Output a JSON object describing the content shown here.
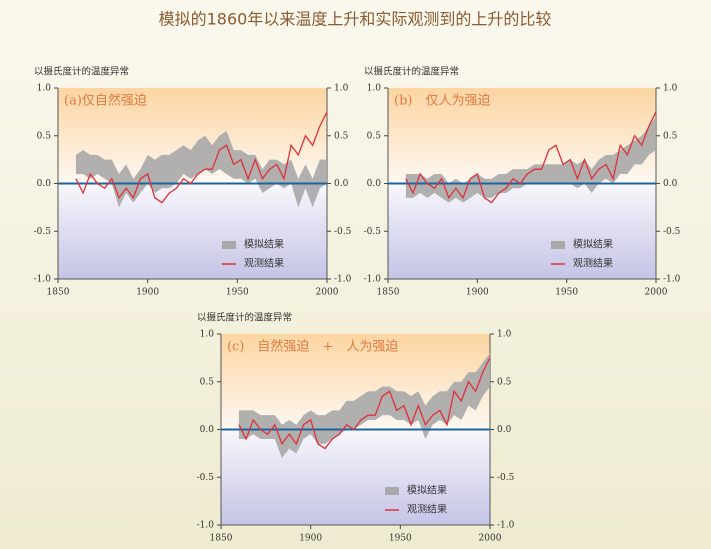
{
  "title": "模拟的1860年以来温度上升和实际观测到的上升的比较",
  "chart_data": [
    {
      "type": "line",
      "title": "(a)仅自然强迫",
      "y_label": "以摄氏度计的温度异常",
      "x": [
        1860,
        1864,
        1868,
        1872,
        1876,
        1880,
        1884,
        1888,
        1892,
        1896,
        1900,
        1904,
        1908,
        1912,
        1916,
        1920,
        1924,
        1928,
        1932,
        1936,
        1940,
        1944,
        1948,
        1952,
        1956,
        1960,
        1964,
        1968,
        1972,
        1976,
        1980,
        1984,
        1988,
        1992,
        1996,
        2000
      ],
      "xlim": [
        1850,
        2000
      ],
      "xticks": [
        1850,
        1900,
        1950,
        2000
      ],
      "ylim": [
        -1,
        1
      ],
      "yticks": [
        {
          "value": 1,
          "label": "1.0"
        },
        {
          "value": 0.5,
          "label": "0.5"
        },
        {
          "value": 0,
          "label": "0.0"
        },
        {
          "value": -0.5,
          "label": "-0.5"
        },
        {
          "value": -1,
          "label": "-1.0"
        }
      ],
      "series": [
        {
          "name": "模拟结果",
          "color": "#a8a8a8",
          "lower": [
            0.1,
            0.1,
            0.05,
            0.1,
            0.05,
            0.0,
            -0.25,
            -0.1,
            -0.2,
            -0.1,
            0.0,
            -0.1,
            -0.05,
            -0.05,
            0.0,
            0.1,
            0.05,
            0.1,
            0.15,
            0.1,
            0.15,
            0.1,
            0.05,
            0.05,
            0.0,
            0.05,
            -0.1,
            -0.05,
            0.0,
            -0.05,
            0.0,
            -0.25,
            -0.05,
            -0.25,
            -0.05,
            0.0
          ],
          "upper": [
            0.3,
            0.35,
            0.3,
            0.3,
            0.25,
            0.25,
            0.1,
            0.2,
            0.05,
            0.15,
            0.3,
            0.25,
            0.3,
            0.3,
            0.35,
            0.4,
            0.35,
            0.45,
            0.5,
            0.4,
            0.5,
            0.55,
            0.35,
            0.35,
            0.3,
            0.3,
            0.15,
            0.25,
            0.25,
            0.2,
            0.25,
            0.05,
            0.2,
            0.05,
            0.25,
            0.25
          ]
        },
        {
          "name": "观测结果",
          "color": "#e0303a",
          "values": [
            0.05,
            -0.1,
            0.1,
            0.0,
            -0.05,
            0.05,
            -0.15,
            -0.05,
            -0.15,
            0.05,
            0.1,
            -0.15,
            -0.2,
            -0.1,
            -0.05,
            0.05,
            0.0,
            0.1,
            0.15,
            0.15,
            0.35,
            0.4,
            0.2,
            0.25,
            0.05,
            0.25,
            0.05,
            0.15,
            0.2,
            0.05,
            0.4,
            0.3,
            0.5,
            0.4,
            0.6,
            0.75
          ]
        }
      ]
    },
    {
      "type": "line",
      "title": "(b)　仅人为强迫",
      "y_label": "以摄氏度计的温度异常",
      "x": [
        1860,
        1864,
        1868,
        1872,
        1876,
        1880,
        1884,
        1888,
        1892,
        1896,
        1900,
        1904,
        1908,
        1912,
        1916,
        1920,
        1924,
        1928,
        1932,
        1936,
        1940,
        1944,
        1948,
        1952,
        1956,
        1960,
        1964,
        1968,
        1972,
        1976,
        1980,
        1984,
        1988,
        1992,
        1996,
        2000
      ],
      "xlim": [
        1850,
        2000
      ],
      "xticks": [
        1850,
        1900,
        1950,
        2000
      ],
      "ylim": [
        -1,
        1
      ],
      "yticks": [
        {
          "value": 1,
          "label": "1.0"
        },
        {
          "value": 0.5,
          "label": "0.5"
        },
        {
          "value": 0,
          "label": "0.0"
        },
        {
          "value": -0.5,
          "label": "-0.5"
        },
        {
          "value": -1,
          "label": "-1.0"
        }
      ],
      "series": [
        {
          "name": "模拟结果",
          "color": "#a8a8a8",
          "lower": [
            -0.15,
            -0.15,
            -0.1,
            -0.15,
            -0.1,
            -0.15,
            -0.2,
            -0.15,
            -0.2,
            -0.15,
            -0.1,
            -0.15,
            -0.15,
            -0.1,
            -0.1,
            -0.05,
            -0.05,
            0.0,
            0.0,
            0.0,
            0.0,
            0.0,
            0.0,
            0.0,
            -0.05,
            0.0,
            -0.1,
            0.0,
            0.05,
            0.0,
            0.1,
            0.1,
            0.2,
            0.2,
            0.3,
            0.35
          ],
          "upper": [
            0.1,
            0.1,
            0.1,
            0.05,
            0.1,
            0.1,
            0.0,
            0.05,
            0.0,
            0.05,
            0.1,
            0.05,
            0.05,
            0.1,
            0.1,
            0.15,
            0.15,
            0.15,
            0.2,
            0.2,
            0.2,
            0.2,
            0.2,
            0.25,
            0.2,
            0.25,
            0.15,
            0.25,
            0.3,
            0.3,
            0.35,
            0.4,
            0.45,
            0.5,
            0.6,
            0.7
          ]
        },
        {
          "name": "观测结果",
          "color": "#e0303a",
          "values": [
            0.05,
            -0.1,
            0.1,
            0.0,
            -0.05,
            0.05,
            -0.15,
            -0.05,
            -0.15,
            0.05,
            0.1,
            -0.15,
            -0.2,
            -0.1,
            -0.05,
            0.05,
            0.0,
            0.1,
            0.15,
            0.15,
            0.35,
            0.4,
            0.2,
            0.25,
            0.05,
            0.25,
            0.05,
            0.15,
            0.2,
            0.05,
            0.4,
            0.3,
            0.5,
            0.4,
            0.6,
            0.75
          ]
        }
      ]
    },
    {
      "type": "line",
      "title": "(c)　自然强迫　+　人为强迫",
      "y_label": "以摄氏度计的温度异常",
      "x": [
        1860,
        1864,
        1868,
        1872,
        1876,
        1880,
        1884,
        1888,
        1892,
        1896,
        1900,
        1904,
        1908,
        1912,
        1916,
        1920,
        1924,
        1928,
        1932,
        1936,
        1940,
        1944,
        1948,
        1952,
        1956,
        1960,
        1964,
        1968,
        1972,
        1976,
        1980,
        1984,
        1988,
        1992,
        1996,
        2000
      ],
      "xlim": [
        1850,
        2000
      ],
      "xticks": [
        1850,
        1900,
        1950,
        2000
      ],
      "ylim": [
        -1,
        1
      ],
      "yticks": [
        {
          "value": 1,
          "label": "1.0"
        },
        {
          "value": 0.5,
          "label": "0.5"
        },
        {
          "value": 0,
          "label": "0.0"
        },
        {
          "value": -0.5,
          "label": "-0.5"
        },
        {
          "value": -1,
          "label": "-1.0"
        }
      ],
      "series": [
        {
          "name": "模拟结果",
          "color": "#a8a8a8",
          "lower": [
            -0.1,
            -0.1,
            -0.05,
            -0.1,
            -0.1,
            -0.1,
            -0.3,
            -0.2,
            -0.25,
            -0.1,
            -0.05,
            -0.15,
            -0.15,
            -0.1,
            -0.05,
            0.0,
            0.0,
            0.05,
            0.1,
            0.1,
            0.15,
            0.15,
            0.1,
            0.1,
            0.05,
            0.1,
            -0.1,
            0.05,
            0.1,
            0.05,
            0.15,
            0.1,
            0.25,
            0.2,
            0.35,
            0.45
          ],
          "upper": [
            0.2,
            0.2,
            0.2,
            0.15,
            0.15,
            0.15,
            0.05,
            0.1,
            0.05,
            0.15,
            0.2,
            0.15,
            0.15,
            0.2,
            0.2,
            0.3,
            0.3,
            0.35,
            0.4,
            0.4,
            0.45,
            0.45,
            0.4,
            0.4,
            0.35,
            0.4,
            0.25,
            0.35,
            0.4,
            0.4,
            0.5,
            0.5,
            0.6,
            0.6,
            0.7,
            0.8
          ]
        },
        {
          "name": "观测结果",
          "color": "#e0303a",
          "values": [
            0.05,
            -0.1,
            0.1,
            0.0,
            -0.05,
            0.05,
            -0.15,
            -0.05,
            -0.15,
            0.05,
            0.1,
            -0.15,
            -0.2,
            -0.1,
            -0.05,
            0.05,
            0.0,
            0.1,
            0.15,
            0.15,
            0.35,
            0.4,
            0.2,
            0.25,
            0.05,
            0.25,
            0.05,
            0.15,
            0.2,
            0.05,
            0.4,
            0.3,
            0.5,
            0.4,
            0.6,
            0.75
          ]
        }
      ]
    }
  ]
}
